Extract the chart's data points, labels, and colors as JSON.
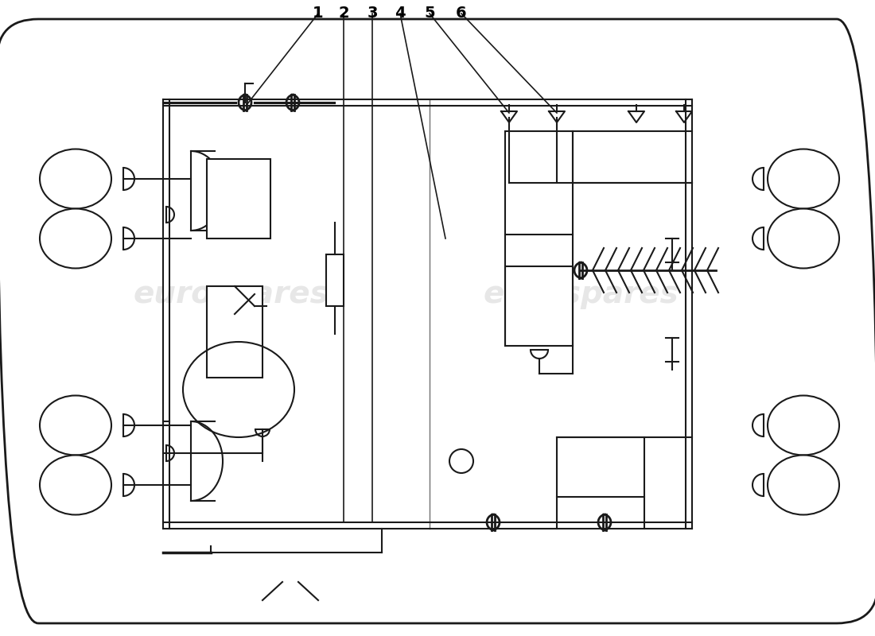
{
  "background_color": "#ffffff",
  "line_color": "#1a1a1a",
  "watermark_color": "#d0d0d0",
  "callout_numbers": [
    "1",
    "2",
    "3",
    "4",
    "5",
    "6"
  ],
  "figsize": [
    11.0,
    8.0
  ],
  "dpi": 100
}
